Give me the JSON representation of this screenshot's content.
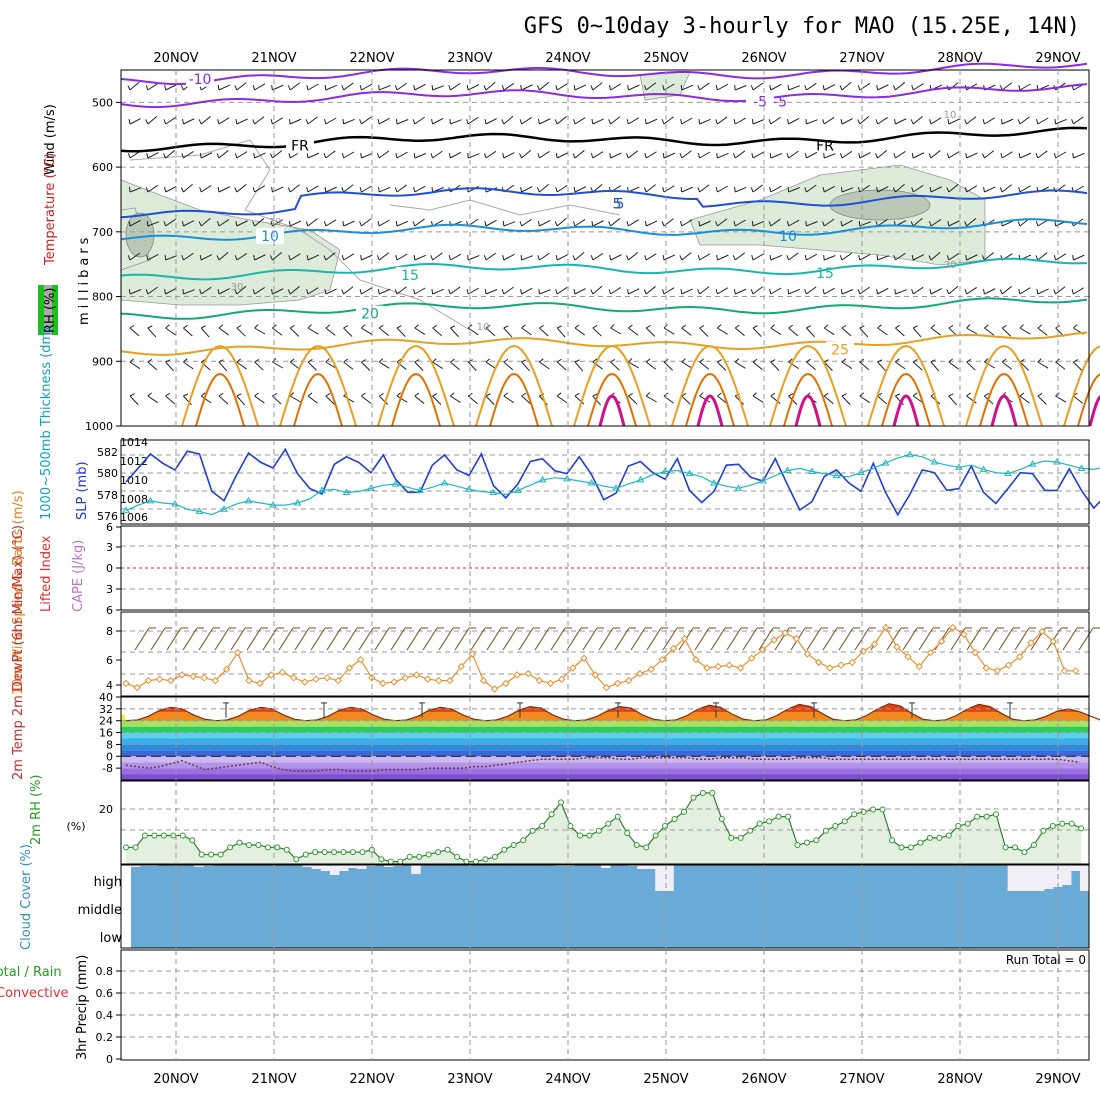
{
  "title": "GFS 0~10day 3-hourly for MAO (15.25E, 14N)",
  "dates": [
    "20NOV",
    "21NOV",
    "22NOV",
    "23NOV",
    "24NOV",
    "25NOV",
    "26NOV",
    "27NOV",
    "28NOV",
    "29NOV"
  ],
  "run_total": "Run Total = 0",
  "colors": {
    "purple": "#8a2be2",
    "black": "#000000",
    "blue": "#1f4fd6",
    "lightblue": "#1a8fd8",
    "teal": "#17b7b0",
    "green": "#13a77f",
    "orange": "#e8a020",
    "darkorange": "#e07000",
    "magenta": "#d0108a",
    "rhfill": "#dcecd9",
    "cloud": "#6aaad6",
    "cloudclear": "#f2eef8",
    "lifted": "#e02020",
    "windorange": "#e89030",
    "slp": "#1f3fd0",
    "thick": "#20b8c0"
  },
  "chart_data": [
    {
      "type": "line",
      "name": "upper-air",
      "ylabel_parts": [
        "Wind (m/s)",
        "Temperature (°C)",
        "RH (%)"
      ],
      "yaxis": "millibars",
      "ylim": [
        1000,
        450
      ],
      "yticks": [
        "500",
        "600",
        "700",
        "800",
        "900",
        "1000"
      ],
      "contours": [
        {
          "label": "-10",
          "level": -10,
          "color": "purple",
          "pressure": 462
        },
        {
          "label": "-5",
          "level": -5,
          "color": "purple",
          "pressure": 497
        },
        {
          "label": "FR",
          "level": 0,
          "color": "black",
          "pressure": 565
        },
        {
          "label": "5",
          "level": 5,
          "color": "blue",
          "pressure": 655
        },
        {
          "label": "10",
          "level": 10,
          "color": "lightblue",
          "pressure": 705
        },
        {
          "label": "15",
          "level": 15,
          "color": "teal",
          "pressure": 765
        },
        {
          "label": "20",
          "level": 20,
          "color": "green",
          "pressure": 825
        },
        {
          "label": "25",
          "level": 25,
          "color": "orange",
          "pressure": 880
        }
      ],
      "rh_labels": [
        "30",
        "30",
        "10",
        "30",
        "10"
      ]
    },
    {
      "type": "line",
      "name": "slp-thickness",
      "ylabel_left": "1000~500mb Thickness (dm)",
      "ylabel_right": "SLP (mb)",
      "left_ticks": [
        "582",
        "580",
        "578",
        "576"
      ],
      "right_ticks": [
        "1014",
        "1012",
        "1010",
        "1008",
        "1006"
      ],
      "series": [
        {
          "name": "SLP (mb)",
          "color": "slp",
          "values": [
            1009.5,
            1011,
            1012.5,
            1011.5,
            1010.8,
            1012.8,
            1012.5,
            1008.5,
            1007.5,
            1010.2,
            1012.6,
            1011.6,
            1011,
            1013,
            1010.4,
            1008.8,
            1008.2,
            1011.4,
            1012.2,
            1011.6,
            1010.5,
            1012.4,
            1009.8,
            1008.4,
            1008.4,
            1011.3,
            1012.4,
            1010.8,
            1010.2,
            1012.5,
            1009.1,
            1007.8,
            1009.3,
            1011.7,
            1012,
            1010.7,
            1010.4,
            1012.2,
            1010.3,
            1007.6,
            1008.3,
            1011.2,
            1011.7,
            1010.5,
            1009.8,
            1012,
            1008.6,
            1007.3,
            1008.5,
            1011.3,
            1011.4,
            1010,
            1009.6,
            1012,
            1009.2,
            1006.5,
            1007.4,
            1010.1,
            1010.8,
            1009.4,
            1008.5,
            1011.5,
            1008.4,
            1006,
            1008.2,
            1010.8,
            1010.5,
            1008.6,
            1008.8,
            1011.2,
            1008.4,
            1007.2,
            1008.8,
            1010.5,
            1010.4,
            1008.6,
            1008.6,
            1010.9,
            1008.6,
            1006.7,
            1008.1,
            1010.8,
            1010,
            1008.8,
            1008.2,
            1010.9
          ]
        },
        {
          "name": "1000~500mb Thickness (dm)",
          "color": "thick",
          "values": [
            576.5,
            577,
            577.4,
            577.2,
            577.1,
            576.6,
            576.4,
            576.1,
            576.6,
            577.1,
            577.4,
            577.2,
            577,
            577,
            577.2,
            577.6,
            578.4,
            578.5,
            578.2,
            578.3,
            578.6,
            578.9,
            579,
            578.7,
            578.4,
            578.7,
            579.1,
            578.8,
            578.5,
            578.3,
            578.2,
            578,
            578.4,
            578.9,
            579.4,
            579.6,
            579.5,
            579.3,
            579.1,
            578.8,
            578.6,
            579,
            579.4,
            579.9,
            580.2,
            580.3,
            580,
            579.7,
            579.1,
            578.8,
            578.6,
            578.9,
            579.3,
            579.8,
            580.3,
            580.5,
            580.2,
            580,
            579.8,
            579.7,
            580.1,
            580.5,
            581,
            581.5,
            581.8,
            581.6,
            581.1,
            580.8,
            580.6,
            580.8,
            580.4,
            580.1,
            580,
            580.4,
            580.9,
            581.2,
            581.1,
            580.8,
            580.5,
            580.4,
            580.7,
            580.9,
            580.6,
            580,
            579.2,
            578.7
          ]
        }
      ]
    },
    {
      "type": "line",
      "name": "cape-li",
      "ylabel_left": "Lifted Index",
      "ylabel_right": "CAPE (J/kg)",
      "yticks": [
        "6",
        "3",
        "0",
        "3",
        "6"
      ],
      "series": [
        {
          "name": "Lifted Index",
          "color": "lifted",
          "values": [
            0
          ]
        }
      ]
    },
    {
      "type": "line",
      "name": "10m-wind",
      "ylabel": "10m Wind Speed & Barbs (m/s)",
      "yticks": [
        "8",
        "6",
        "4"
      ],
      "ylim": [
        3.5,
        9.5
      ],
      "series": [
        {
          "name": "10m Wind Speed",
          "color": "windorange",
          "values": [
            4.4,
            4.1,
            4.6,
            4.7,
            4.6,
            5,
            4.9,
            4.8,
            4.6,
            5.4,
            6.6,
            4.6,
            4.4,
            5,
            5.2,
            4.8,
            4.5,
            4.7,
            4.8,
            4.6,
            5.5,
            6.1,
            4.8,
            4.4,
            4.5,
            4.8,
            5,
            4.7,
            4.6,
            4.6,
            5.6,
            6.5,
            4.6,
            4,
            4.4,
            5,
            5.1,
            4.6,
            4.4,
            4.7,
            5.5,
            6.2,
            5,
            4.1,
            4.4,
            4.6,
            5.1,
            5.4,
            6.1,
            6.9,
            7.6,
            6.1,
            5.5,
            5.6,
            5.7,
            5.5,
            6.2,
            6.8,
            7.5,
            8,
            7.6,
            6.5,
            5.9,
            5.5,
            5.7,
            5.9,
            6.7,
            7.2,
            8.4,
            7,
            6.3,
            5.6,
            6.6,
            7.4,
            8.4,
            7.9,
            6.6,
            5.5,
            5.3,
            5.7,
            6.3,
            7.3,
            8.1,
            7.4,
            5.3,
            5.3
          ]
        }
      ]
    },
    {
      "type": "area",
      "name": "temperature",
      "ylabel": "2m Temp 2m DewPt (6hr Min/Max) (°C)",
      "yticks": [
        "40",
        "32",
        "24",
        "16",
        "8",
        "0",
        "-8"
      ],
      "ylim": [
        -16,
        40
      ],
      "series": [
        {
          "name": "2m Temp",
          "values": [
            24,
            24.5,
            27,
            31,
            33,
            32,
            28,
            25,
            24,
            24.5,
            27,
            31,
            33,
            32,
            28,
            25,
            24,
            24.5,
            27,
            31,
            33,
            32,
            28,
            25,
            24,
            24.5,
            27,
            31,
            33,
            32,
            28,
            25,
            24,
            24.5,
            27,
            31,
            33.5,
            32.5,
            28,
            25,
            24,
            24.5,
            27,
            31,
            33.5,
            32.5,
            28,
            25,
            24,
            24.5,
            27.5,
            32,
            34.5,
            33,
            28.5,
            25,
            24,
            24.5,
            27.5,
            32,
            35,
            33.5,
            29,
            25,
            24,
            24.5,
            27.5,
            32,
            35.5,
            34,
            29,
            25,
            24,
            24.5,
            27.5,
            32,
            35,
            33.5,
            29,
            25,
            24,
            24.5,
            27,
            30.5,
            32,
            30,
            27,
            24
          ]
        },
        {
          "name": "2m DewPt",
          "values": [
            -6,
            -7,
            -8,
            -7,
            -5,
            -3,
            -6,
            -9,
            -8,
            -7,
            -6,
            -5,
            -4,
            -7,
            -9,
            -10,
            -10,
            -10,
            -9,
            -9,
            -10,
            -10,
            -10,
            -9,
            -9,
            -9,
            -9,
            -8,
            -8,
            -8,
            -8,
            -7,
            -7,
            -6,
            -5,
            -4,
            -3,
            -2,
            -2,
            -2,
            -2,
            -1,
            -1,
            -1,
            -2,
            -2,
            -1,
            -1,
            -1,
            -1,
            -1,
            -2,
            -2,
            -1,
            -1,
            -1,
            -2,
            -2,
            -2,
            -2,
            -1,
            -1,
            -1,
            -2,
            -2,
            -2,
            -2,
            -2,
            -2,
            -2,
            -2,
            -2,
            -2,
            -2,
            -2,
            -2,
            -2,
            -2,
            -2,
            -2,
            -2,
            -2,
            -2,
            -2,
            -3,
            -4
          ]
        }
      ]
    },
    {
      "type": "area",
      "name": "rh",
      "ylabel": "2m RH (%)",
      "yticks": [
        "20"
      ],
      "ylim": [
        0,
        35
      ],
      "series": [
        {
          "name": "2m RH",
          "values": [
            7,
            7,
            12,
            12,
            12,
            12,
            12,
            10,
            4,
            4,
            4,
            7,
            9,
            8,
            8,
            7,
            7,
            6,
            2,
            4,
            5,
            5,
            5,
            5,
            5,
            5,
            6,
            2,
            1,
            1,
            3,
            3,
            4,
            5,
            6,
            3,
            1,
            1,
            2,
            3,
            6,
            8,
            10,
            14,
            16,
            21,
            26,
            16,
            12,
            12,
            14,
            17,
            20,
            13,
            8,
            7,
            12,
            16,
            19,
            22,
            28,
            30,
            30,
            19,
            11,
            11,
            14,
            17,
            18,
            20,
            20,
            8,
            9,
            10,
            14,
            16,
            18,
            21,
            22,
            23,
            23,
            10,
            7,
            7,
            9,
            11,
            11,
            12,
            16,
            17,
            20,
            20,
            21,
            7,
            7,
            5,
            8,
            14,
            16,
            17,
            17,
            15
          ]
        }
      ]
    },
    {
      "type": "area",
      "name": "cloud-cover",
      "ylabel": "Cloud Cover (%)",
      "levels": [
        "high",
        "middle",
        "low"
      ],
      "series": [
        {
          "name": "high cloud gap",
          "values": [
            2,
            1,
            1,
            0,
            0,
            0,
            0,
            2,
            1,
            0,
            0,
            0,
            0,
            0,
            0,
            0,
            0,
            0,
            0,
            2,
            4,
            6,
            10,
            6,
            3,
            4,
            1,
            0,
            2,
            1,
            0,
            9,
            0,
            0,
            0,
            0,
            0,
            0,
            0,
            0,
            0,
            0,
            0,
            0,
            0,
            0,
            0,
            1,
            1,
            0,
            0,
            0,
            3,
            0,
            0,
            1,
            4,
            4,
            26,
            26,
            0,
            0,
            0,
            0,
            0,
            0,
            0,
            0,
            0,
            0,
            0,
            0,
            0,
            0,
            0,
            0,
            0,
            0,
            0,
            0,
            0,
            0,
            0,
            0,
            0,
            0,
            0,
            0,
            0,
            0,
            0,
            0,
            0,
            0,
            0,
            0,
            0,
            26,
            26,
            26,
            26,
            24,
            22,
            20,
            6,
            26
          ]
        }
      ]
    },
    {
      "type": "bar",
      "name": "precip",
      "ylabel": "Total / Rain Convective 3hr Precip (mm)",
      "ylabel_parts": [
        "Total / Rain",
        "Convective",
        "3hr Precip (mm)"
      ],
      "yticks": [
        "0.8",
        "0.6",
        "0.4",
        "0.2",
        "0"
      ],
      "ylim": [
        0,
        1
      ],
      "series": [
        {
          "name": "Total",
          "values": [
            0
          ]
        },
        {
          "name": "Convective",
          "values": [
            0
          ]
        }
      ]
    }
  ]
}
